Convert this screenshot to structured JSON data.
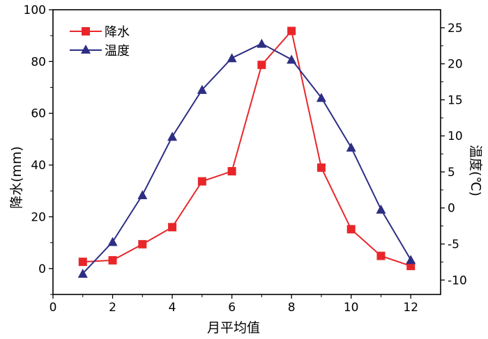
{
  "chart_data": {
    "type": "line",
    "xlabel": "月平均值",
    "ylabel_left": "降水(mm)",
    "ylabel_right": "温度(℃)",
    "xlim": [
      0,
      13
    ],
    "ylim_left": [
      -10,
      100
    ],
    "ylim_right": [
      -12,
      27.5
    ],
    "x_ticks": [
      0,
      2,
      4,
      6,
      8,
      10,
      12
    ],
    "y_left_ticks": [
      0,
      20,
      40,
      60,
      80,
      100
    ],
    "y_right_ticks": [
      -10,
      -5,
      0,
      5,
      10,
      15,
      20,
      25
    ],
    "grid": false,
    "legend_position": "top-left",
    "series": [
      {
        "name": "降水",
        "axis": "left",
        "color": "#e8262a",
        "marker": "square",
        "x": [
          1,
          2,
          3,
          4,
          5,
          6,
          7,
          8,
          9,
          10,
          11,
          12
        ],
        "values": [
          2.6,
          3.2,
          9.4,
          16.0,
          33.7,
          37.6,
          78.7,
          91.8,
          39.0,
          15.2,
          4.9,
          1.0
        ]
      },
      {
        "name": "温度",
        "axis": "right",
        "color": "#2d2e83",
        "marker": "triangle",
        "x": [
          1,
          2,
          3,
          4,
          5,
          6,
          7,
          8,
          9,
          10,
          11,
          12
        ],
        "values": [
          -9.1,
          -4.7,
          1.8,
          9.9,
          16.4,
          20.8,
          22.8,
          20.6,
          15.3,
          8.4,
          -0.2,
          -7.2
        ]
      }
    ]
  }
}
